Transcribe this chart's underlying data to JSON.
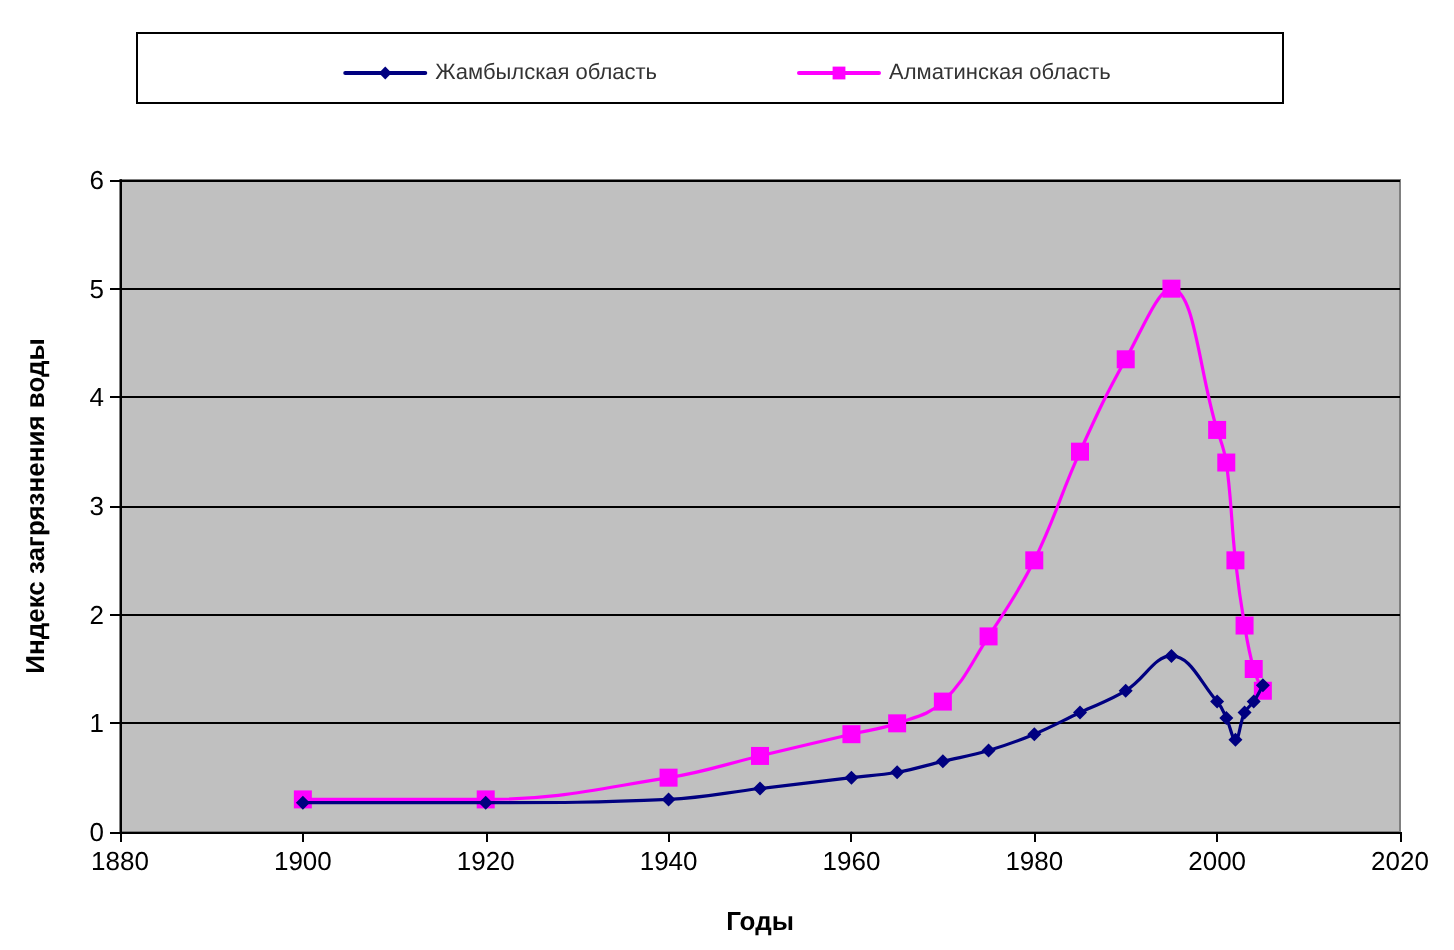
{
  "chart_data": {
    "type": "line",
    "xlabel": "Годы",
    "ylabel": "Индекс загрязнения воды",
    "xlim": [
      1880,
      2020
    ],
    "xticks": [
      1880,
      1900,
      1920,
      1940,
      1960,
      1980,
      2000,
      2020
    ],
    "ylim": [
      0,
      6
    ],
    "yticks": [
      0,
      1,
      2,
      3,
      4,
      5,
      6
    ],
    "grid": "y",
    "legend": "top",
    "series": [
      {
        "name": "Жамбылская область",
        "color": "#000080",
        "marker": "diamond",
        "x": [
          1900,
          1920,
          1940,
          1950,
          1960,
          1965,
          1970,
          1975,
          1980,
          1985,
          1990,
          1995,
          2000,
          2001,
          2002,
          2003,
          2004,
          2005
        ],
        "values": [
          0.27,
          0.27,
          0.3,
          0.4,
          0.5,
          0.55,
          0.65,
          0.75,
          0.9,
          1.1,
          1.3,
          1.62,
          1.2,
          1.05,
          0.85,
          1.1,
          1.2,
          1.35
        ]
      },
      {
        "name": "Алматинская область",
        "color": "#ff00ff",
        "marker": "square",
        "x": [
          1900,
          1920,
          1940,
          1950,
          1960,
          1965,
          1970,
          1975,
          1980,
          1985,
          1990,
          1995,
          2000,
          2001,
          2002,
          2003,
          2004,
          2005
        ],
        "values": [
          0.3,
          0.3,
          0.5,
          0.7,
          0.9,
          1.0,
          1.2,
          1.8,
          2.5,
          3.5,
          4.35,
          5.0,
          3.7,
          3.4,
          2.5,
          1.9,
          1.5,
          1.3
        ]
      }
    ]
  }
}
